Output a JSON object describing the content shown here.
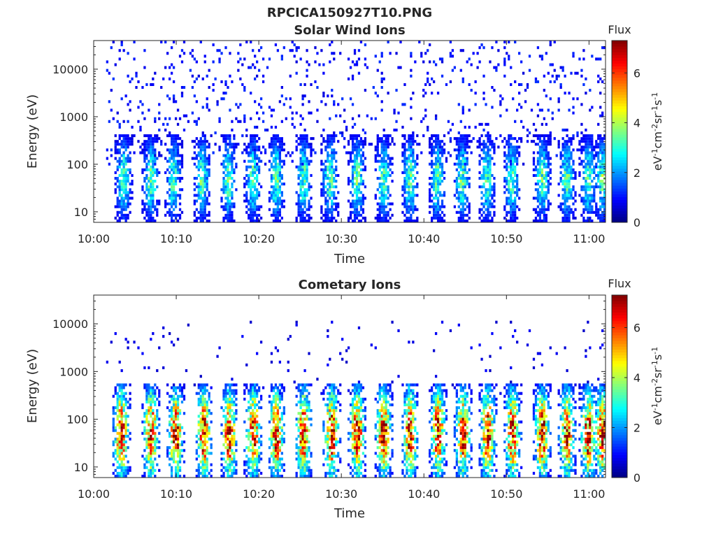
{
  "figure_title": "RPCICA150927T10.PNG",
  "colorbar_units": {
    "base": "eV",
    "s1": "-1",
    "mid1": "cm",
    "s2": "-2",
    "mid2": "sr",
    "s3": "-1",
    "mid3": "s",
    "s4": "-1"
  },
  "colors": {
    "colormap": "jet",
    "axis": "#262626",
    "background": "#ffffff"
  },
  "chart_data": [
    {
      "type": "heatmap",
      "title": "Solar Wind Ions",
      "xlabel": "Time",
      "ylabel": "Energy (eV)",
      "x_ticks": [
        "10:00",
        "10:10",
        "10:20",
        "10:30",
        "10:40",
        "10:50",
        "11:00"
      ],
      "x_tick_minutes": [
        0,
        10,
        20,
        30,
        40,
        50,
        60
      ],
      "xlim_minutes": [
        0,
        62
      ],
      "y_scale": "log",
      "y_ticks": [
        "10",
        "100",
        "1000",
        "10000"
      ],
      "y_tick_values": [
        10,
        100,
        1000,
        10000
      ],
      "ylim": [
        6,
        40000
      ],
      "colorbar_label": "Flux",
      "colorbar_ticks": [
        "0",
        "2",
        "4",
        "6"
      ],
      "colorbar_tick_values": [
        0,
        2,
        4,
        6
      ],
      "clim": [
        0,
        7.3
      ],
      "data_start_minutes": 1.5,
      "burst_centers_minutes": [
        3.5,
        6.8,
        9.5,
        13.0,
        16.2,
        19.2,
        22.0,
        25.3,
        28.5,
        31.8,
        35.0,
        38.2,
        41.5,
        44.5,
        47.5,
        50.5,
        54.2,
        57.2,
        59.8,
        61.5
      ],
      "burst_peak_flux": 2.6,
      "burst_energy_range_ev": [
        6,
        400
      ],
      "background_flux": 0.8,
      "background_energy_range_ev": [
        100,
        40000
      ]
    },
    {
      "type": "heatmap",
      "title": "Cometary Ions",
      "xlabel": "Time",
      "ylabel": "Energy (eV)",
      "x_ticks": [
        "10:00",
        "10:10",
        "10:20",
        "10:30",
        "10:40",
        "10:50",
        "11:00"
      ],
      "x_tick_minutes": [
        0,
        10,
        20,
        30,
        40,
        50,
        60
      ],
      "xlim_minutes": [
        0,
        62
      ],
      "y_scale": "log",
      "y_ticks": [
        "10",
        "100",
        "1000",
        "10000"
      ],
      "y_tick_values": [
        10,
        100,
        1000,
        10000
      ],
      "ylim": [
        6,
        40000
      ],
      "colorbar_label": "Flux",
      "colorbar_ticks": [
        "0",
        "2",
        "4",
        "6"
      ],
      "colorbar_tick_values": [
        0,
        2,
        4,
        6
      ],
      "clim": [
        0,
        7.3
      ],
      "data_start_minutes": 1.5,
      "burst_centers_minutes": [
        3.2,
        6.8,
        9.8,
        13.2,
        16.3,
        19.2,
        22.0,
        25.3,
        28.7,
        31.8,
        35.0,
        38.2,
        41.6,
        44.6,
        47.6,
        50.6,
        54.2,
        57.2,
        59.8,
        61.5
      ],
      "burst_peak_flux": 5.8,
      "burst_energy_range_ev": [
        6,
        600
      ],
      "background_flux": 0.6,
      "background_energy_range_ev": [
        300,
        12000
      ]
    }
  ]
}
